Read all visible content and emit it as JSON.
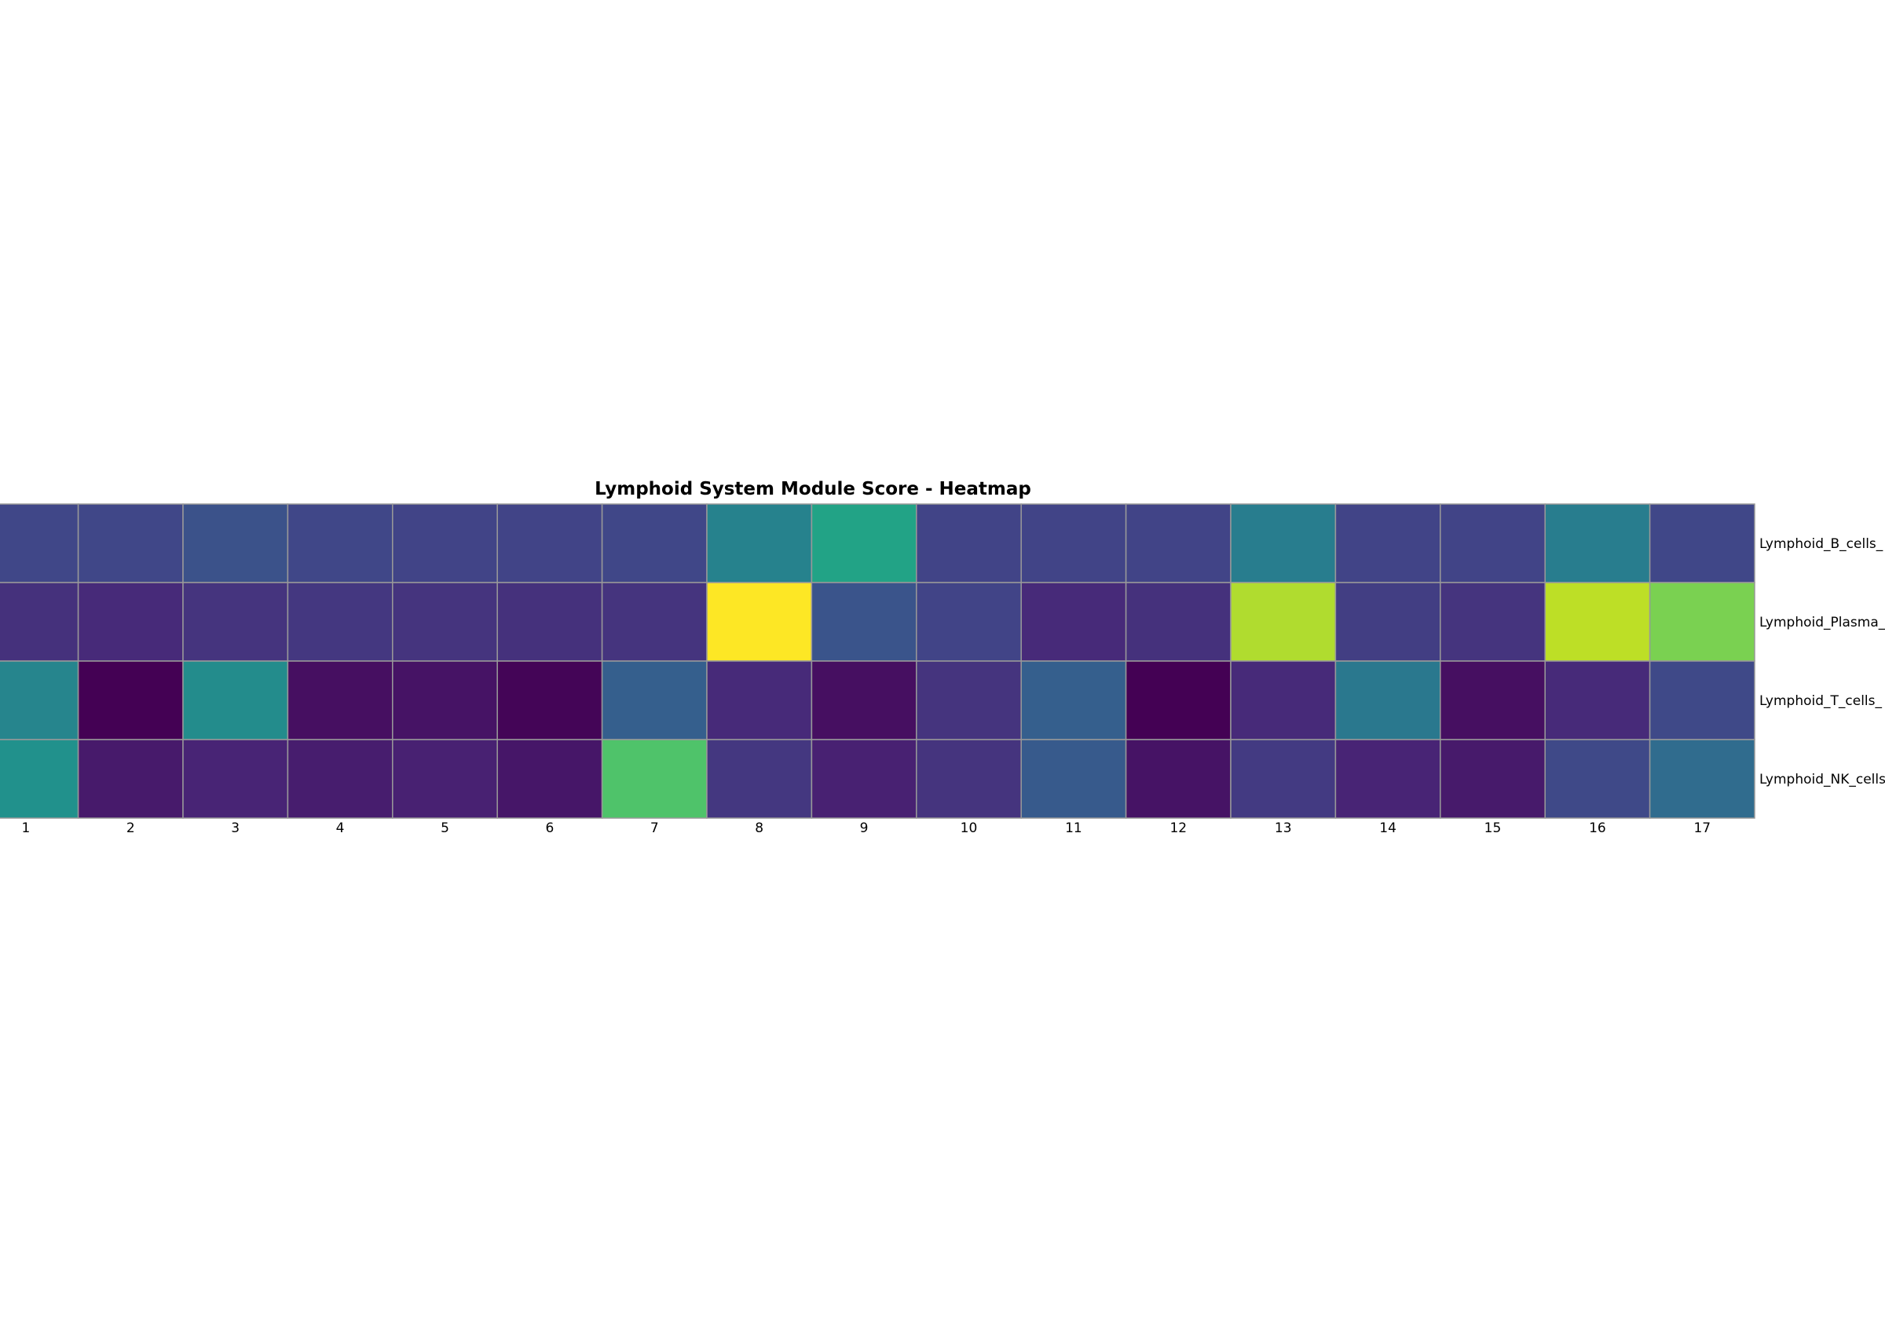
{
  "chart_data": {
    "type": "heatmap",
    "title": "Lymphoid System Module Score - Heatmap",
    "xlabel": "",
    "ylabel": "",
    "columns": [
      "1",
      "2",
      "3",
      "4",
      "5",
      "6",
      "7",
      "8",
      "9",
      "10",
      "11",
      "12",
      "13",
      "14",
      "15",
      "16",
      "17"
    ],
    "row_labels": [
      "Lymphoid_B_cells_",
      "Lymphoid_Plasma_",
      "Lymphoid_T_cells_",
      "Lymphoid_NK_cells"
    ],
    "values": [
      [
        0.21,
        0.21,
        0.25,
        0.21,
        0.2,
        0.2,
        0.21,
        0.44,
        0.58,
        0.2,
        0.2,
        0.2,
        0.42,
        0.2,
        0.2,
        0.42,
        0.21
      ],
      [
        0.14,
        0.12,
        0.15,
        0.16,
        0.15,
        0.14,
        0.15,
        1.0,
        0.26,
        0.2,
        0.12,
        0.14,
        0.88,
        0.18,
        0.15,
        0.9,
        0.8
      ],
      [
        0.45,
        0.0,
        0.48,
        0.04,
        0.05,
        0.01,
        0.3,
        0.12,
        0.04,
        0.15,
        0.3,
        0.0,
        0.12,
        0.4,
        0.04,
        0.12,
        0.22
      ],
      [
        0.5,
        0.07,
        0.1,
        0.08,
        0.09,
        0.06,
        0.72,
        0.16,
        0.09,
        0.15,
        0.28,
        0.05,
        0.17,
        0.1,
        0.07,
        0.22,
        0.35
      ]
    ],
    "colormap": "viridis",
    "cell_border_color": "#999999"
  }
}
